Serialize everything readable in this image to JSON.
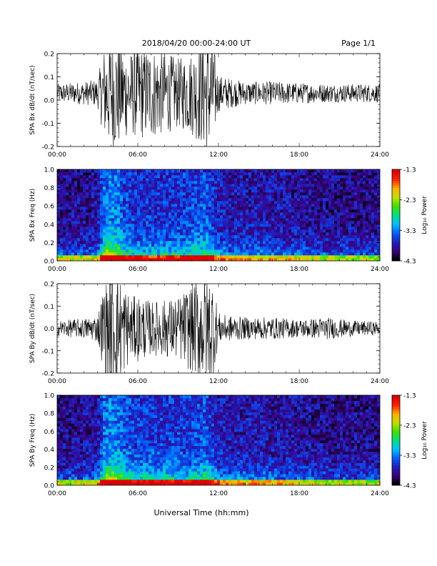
{
  "header": {
    "title": "2018/04/20  00:00-24:00 UT",
    "page": "Page 1/1"
  },
  "xlabel": "Universal Time (hh:mm)",
  "x_ticks": [
    "00:00",
    "06:00",
    "12:00",
    "18:00",
    "24:00"
  ],
  "colorbar": {
    "label": "Log₁₀ Power",
    "ticks": [
      "-1.3",
      "-2.3",
      "-3.3",
      "-4.3"
    ],
    "range": [
      -4.3,
      -1.3
    ],
    "colormap": [
      "#000000",
      "#3a0080",
      "#2020c0",
      "#0060ff",
      "#00c0ff",
      "#00e080",
      "#40e000",
      "#c0e000",
      "#ffb000",
      "#ff2000",
      "#e00000"
    ]
  },
  "chart_data": [
    {
      "type": "line",
      "ylabel": "SPA Bx dB/dt (nT/sec)",
      "ylim": [
        -0.2,
        0.2
      ],
      "y_ticks": [
        "0.2",
        "0.1",
        "0.0",
        "-0.1",
        "-0.2"
      ],
      "xlim_hours": [
        0,
        24
      ],
      "envelope": {
        "hours": [
          0,
          1,
          2,
          3,
          3.5,
          4,
          4.5,
          5,
          5.5,
          6,
          7,
          8,
          9,
          10,
          11,
          11.5,
          12,
          12.5,
          14,
          16,
          18,
          20,
          22,
          24
        ],
        "amplitude": [
          0.04,
          0.045,
          0.05,
          0.06,
          0.2,
          0.25,
          0.25,
          0.2,
          0.18,
          0.2,
          0.2,
          0.18,
          0.15,
          0.18,
          0.25,
          0.25,
          0.08,
          0.07,
          0.05,
          0.05,
          0.045,
          0.04,
          0.04,
          0.04
        ],
        "offset": 0.03
      }
    },
    {
      "type": "heatmap",
      "ylabel": "SPA Bx Freq (Hz)",
      "ylim": [
        0,
        1.0
      ],
      "y_ticks": [
        "1.0",
        "0.8",
        "0.6",
        "0.4",
        "0.2",
        "0.0"
      ],
      "xlim_hours": [
        0,
        24
      ],
      "activity": {
        "hours": [
          0,
          3,
          3.5,
          4,
          4.5,
          5,
          6,
          8,
          10,
          11,
          12,
          13,
          15,
          18,
          21,
          24
        ],
        "level": [
          0.35,
          0.4,
          0.85,
          0.95,
          0.9,
          0.7,
          0.6,
          0.6,
          0.65,
          0.75,
          0.5,
          0.45,
          0.45,
          0.4,
          0.35,
          0.35
        ]
      }
    },
    {
      "type": "line",
      "ylabel": "SPA By dB/dt (nT/sec)",
      "ylim": [
        -0.2,
        0.2
      ],
      "y_ticks": [
        "0.2",
        "0.1",
        "0.0",
        "-0.1",
        "-0.2"
      ],
      "xlim_hours": [
        0,
        24
      ],
      "envelope": {
        "hours": [
          0,
          1,
          2,
          3,
          3.5,
          4,
          4.5,
          5,
          5.5,
          6,
          7,
          8,
          9,
          10,
          11,
          11.5,
          12,
          12.5,
          14,
          16,
          18,
          20,
          22,
          24
        ],
        "amplitude": [
          0.035,
          0.04,
          0.045,
          0.06,
          0.2,
          0.25,
          0.25,
          0.2,
          0.14,
          0.15,
          0.12,
          0.13,
          0.14,
          0.2,
          0.25,
          0.25,
          0.07,
          0.06,
          0.05,
          0.05,
          0.04,
          0.05,
          0.035,
          0.03
        ],
        "offset": 0.0
      }
    },
    {
      "type": "heatmap",
      "ylabel": "SPA By Freq (Hz)",
      "ylim": [
        0,
        1.0
      ],
      "y_ticks": [
        "1.0",
        "0.8",
        "0.6",
        "0.4",
        "0.2",
        "0.0"
      ],
      "xlim_hours": [
        0,
        24
      ],
      "activity": {
        "hours": [
          0,
          3,
          3.5,
          4,
          4.5,
          5,
          6,
          8,
          10,
          11,
          12,
          13,
          15,
          18,
          21,
          24
        ],
        "level": [
          0.35,
          0.4,
          0.85,
          0.95,
          0.9,
          0.75,
          0.65,
          0.65,
          0.65,
          0.75,
          0.5,
          0.45,
          0.45,
          0.4,
          0.35,
          0.35
        ]
      }
    }
  ]
}
